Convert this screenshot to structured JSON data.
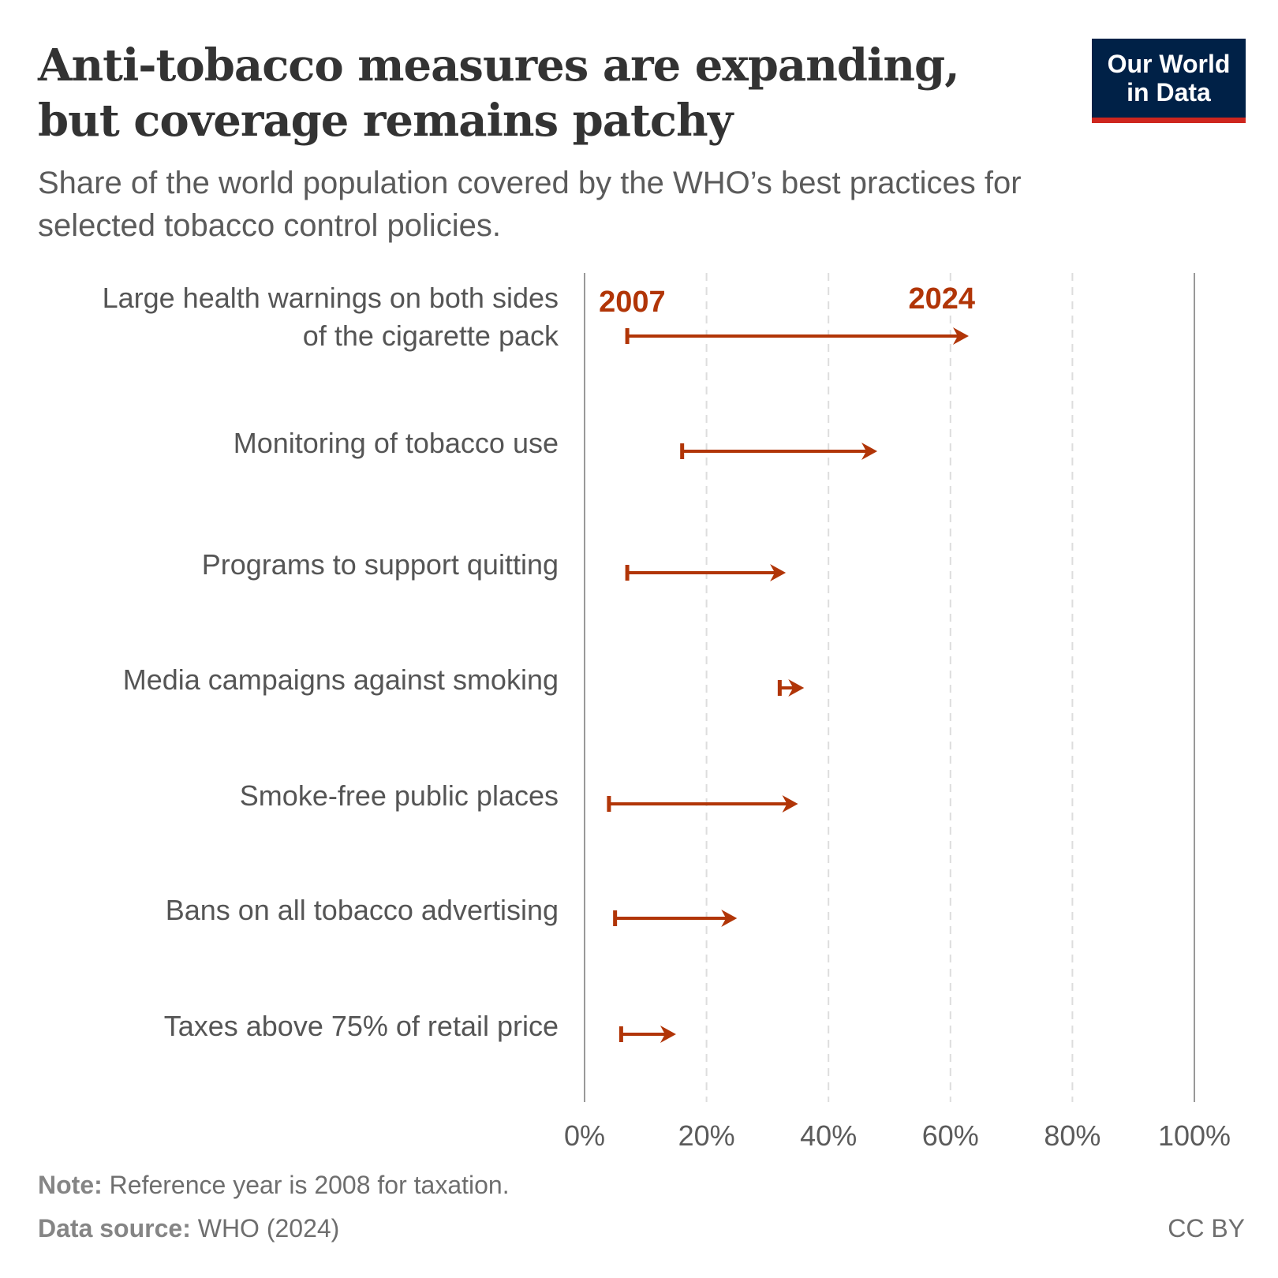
{
  "title_lines": [
    "Anti-tobacco measures are expanding,",
    "but coverage remains patchy"
  ],
  "subtitle": "Share of the world population covered by the WHO’s best practices for selected tobacco control policies.",
  "logo": {
    "line1": "Our World",
    "line2": "in Data"
  },
  "colors": {
    "accent": "#b13507",
    "text": "#333333",
    "axis": "#999999",
    "grid": "#dddddd",
    "logo_bg": "#002147",
    "logo_bar": "#ce261e"
  },
  "chart_data": {
    "type": "arrow-range",
    "start_label": "2007",
    "end_label": "2024",
    "xlim": [
      0,
      100
    ],
    "x_ticks": [
      "0%",
      "20%",
      "40%",
      "60%",
      "80%",
      "100%"
    ],
    "grid": true,
    "unit": "%",
    "categories": [
      {
        "label": [
          "Large health warnings on both sides",
          "of the cigarette pack"
        ],
        "start": 7,
        "end": 63
      },
      {
        "label": [
          "Monitoring of tobacco use"
        ],
        "start": 16,
        "end": 48
      },
      {
        "label": [
          "Programs to support quitting"
        ],
        "start": 7,
        "end": 33
      },
      {
        "label": [
          "Media campaigns against smoking"
        ],
        "start": 32,
        "end": 36
      },
      {
        "label": [
          "Smoke-free public places"
        ],
        "start": 4,
        "end": 35
      },
      {
        "label": [
          "Bans on all tobacco advertising"
        ],
        "start": 5,
        "end": 25
      },
      {
        "label": [
          "Taxes above 75% of retail price"
        ],
        "start": 6,
        "end": 15
      }
    ]
  },
  "footer": {
    "note_label": "Note:",
    "note": " Reference year is 2008 for taxation.",
    "source_label": "Data source:",
    "source": " WHO (2024)",
    "license": "CC BY"
  }
}
